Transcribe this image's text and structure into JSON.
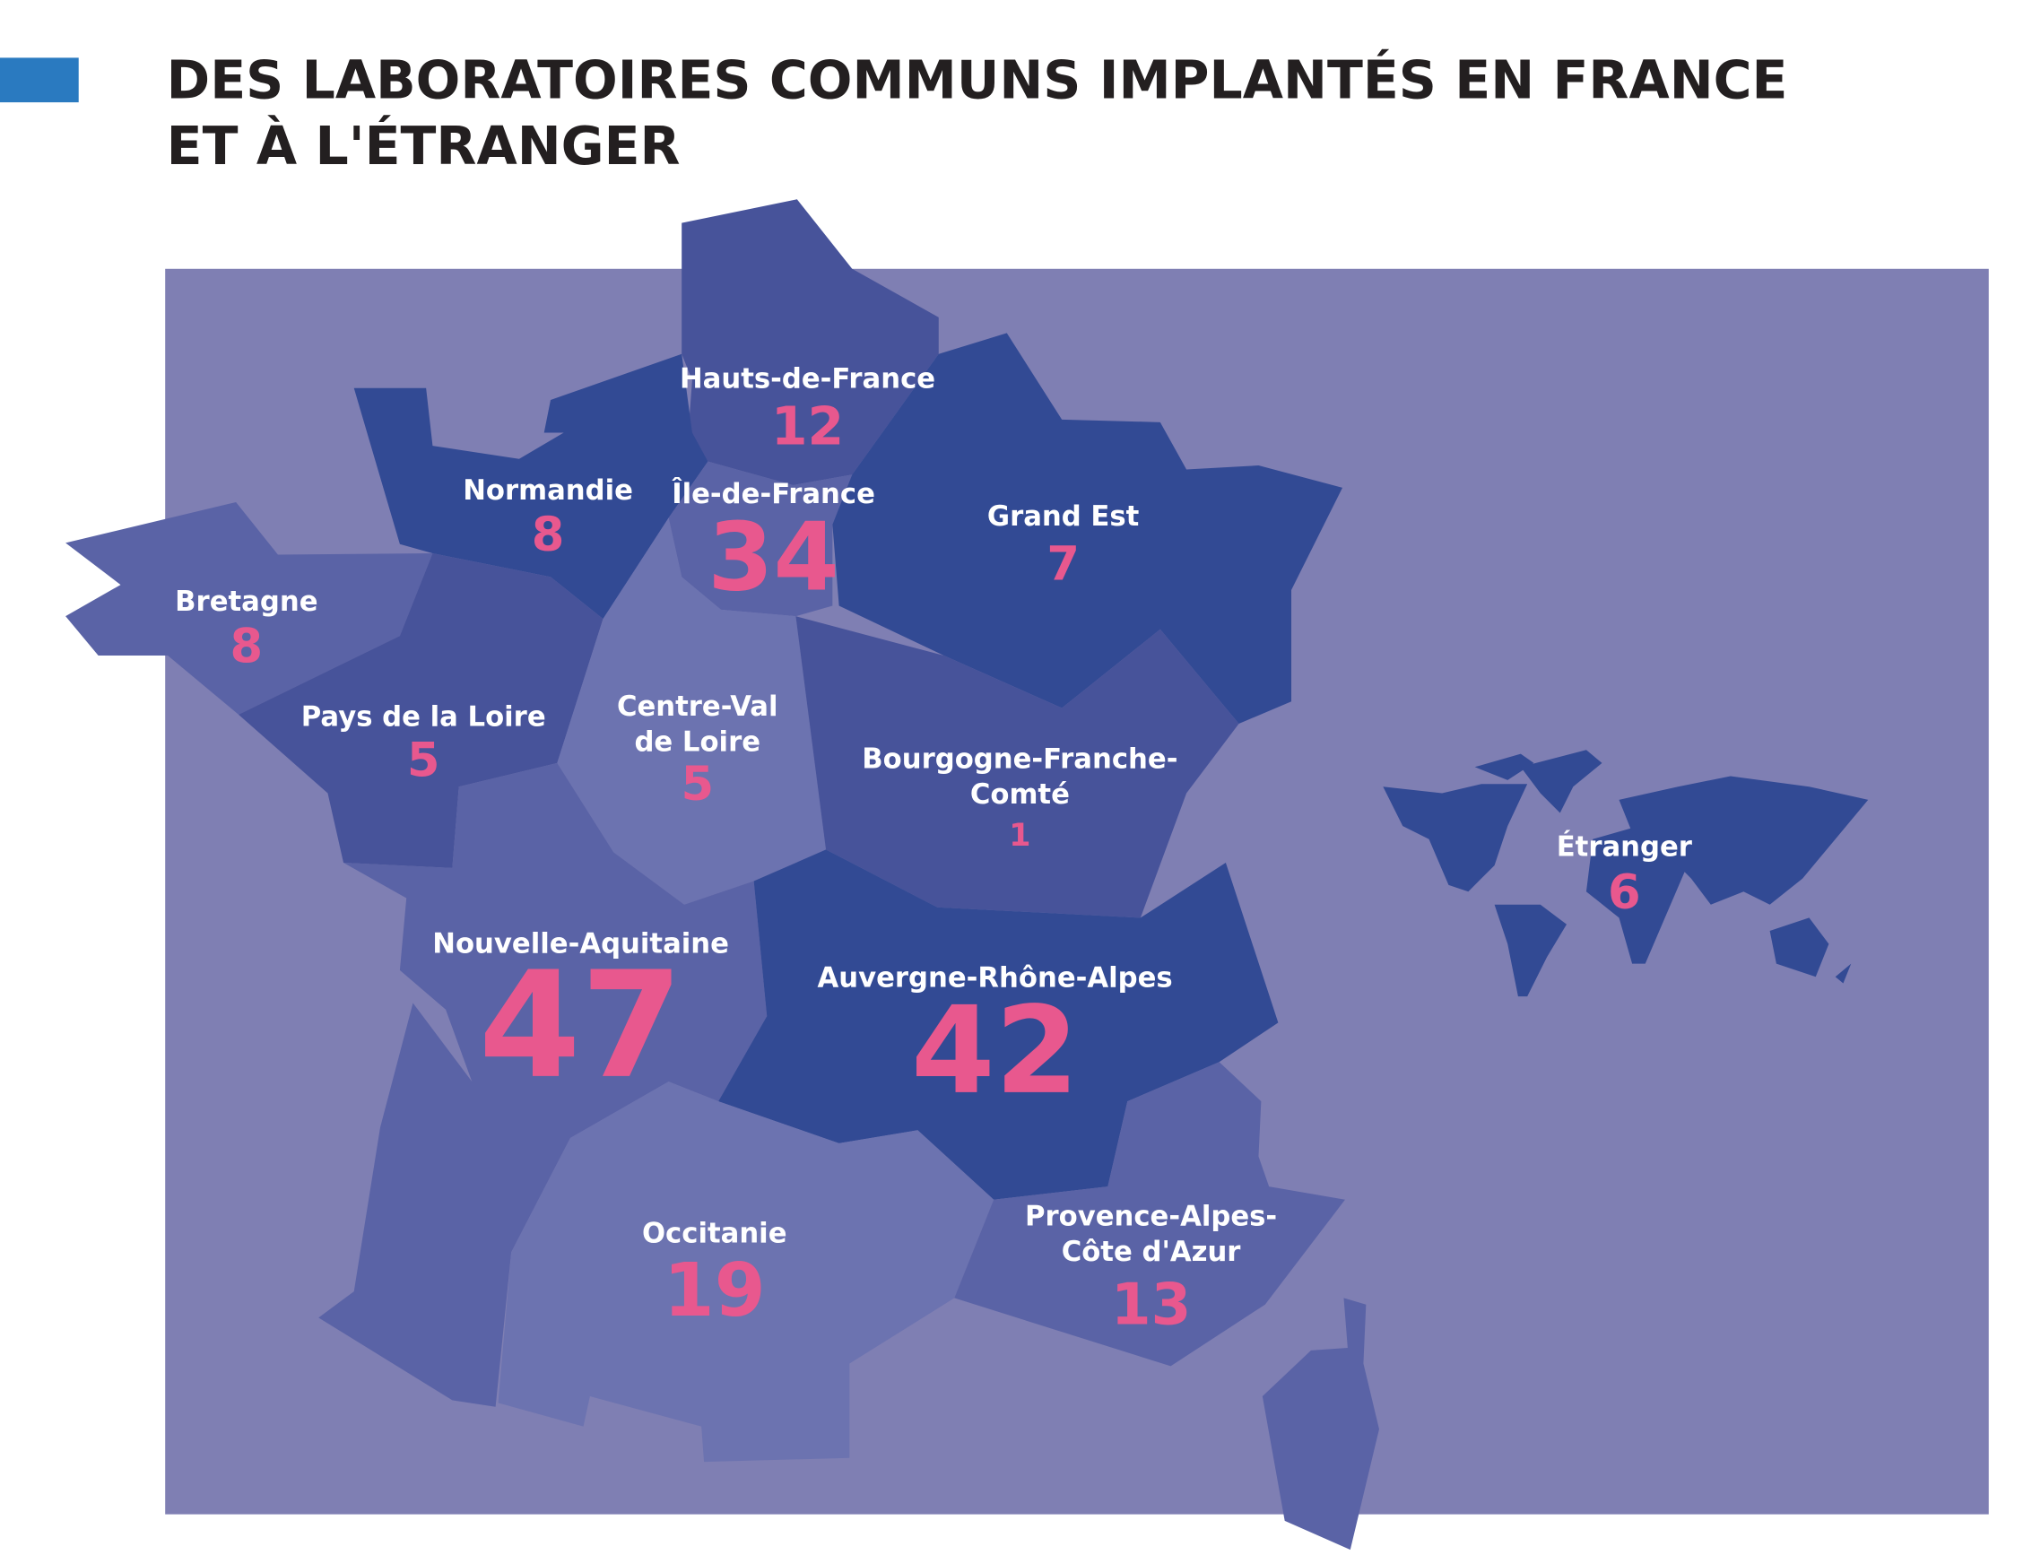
{
  "title": [
    "DES LABORATOIRES COMMUNS IMPLANTÉS EN FRANCE",
    "ET À L'ÉTRANGER"
  ],
  "regions": [
    {
      "name": [
        "Hauts-de-France"
      ],
      "count": 12
    },
    {
      "name": [
        "Normandie"
      ],
      "count": 8
    },
    {
      "name": [
        "Île-de-France"
      ],
      "count": 34
    },
    {
      "name": [
        "Grand Est"
      ],
      "count": 7
    },
    {
      "name": [
        "Bretagne"
      ],
      "count": 8
    },
    {
      "name": [
        "Pays de la Loire"
      ],
      "count": 5
    },
    {
      "name": [
        "Centre-Val",
        "de Loire"
      ],
      "count": 5
    },
    {
      "name": [
        "Bourgogne-Franche-",
        "Comté"
      ],
      "count": 1
    },
    {
      "name": [
        "Nouvelle-Aquitaine"
      ],
      "count": 47
    },
    {
      "name": [
        "Auvergne-Rhône-Alpes"
      ],
      "count": 42
    },
    {
      "name": [
        "Occitanie"
      ],
      "count": 19
    },
    {
      "name": [
        "Provence-Alpes-",
        "Côte d'Azur"
      ],
      "count": 13
    },
    {
      "name": [
        "Étranger"
      ],
      "count": 6
    }
  ]
}
